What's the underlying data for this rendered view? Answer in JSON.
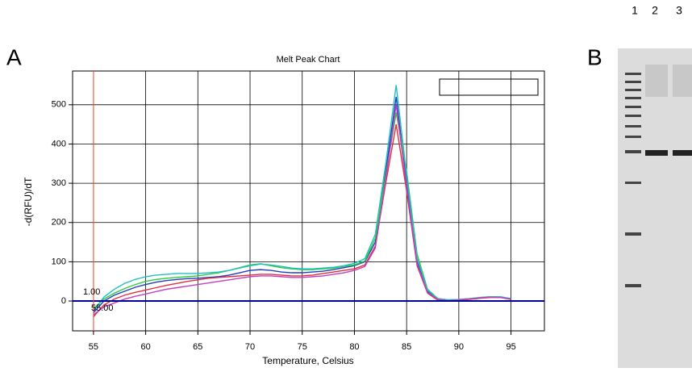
{
  "panel_a": "A",
  "panel_b": "B",
  "lanes": [
    "1",
    "2",
    "3"
  ],
  "chart_data": {
    "type": "line",
    "title": "Melt Peak Chart",
    "x_label": "Temperature, Celsius",
    "y_label": "-d(RFU)/dT",
    "annotations": [
      "1.00",
      "55.00"
    ],
    "x": [
      55,
      56,
      57,
      58,
      59,
      60,
      61,
      62,
      63,
      64,
      65,
      66,
      67,
      68,
      69,
      70,
      71,
      72,
      73,
      74,
      75,
      76,
      77,
      78,
      79,
      80,
      81,
      82,
      83,
      84,
      85,
      86,
      87,
      88,
      89,
      90,
      91,
      92,
      93,
      94,
      95
    ],
    "series": [
      {
        "color": "#1f3fbf",
        "values": [
          -30,
          0,
          15,
          25,
          35,
          42,
          48,
          52,
          55,
          57,
          58,
          60,
          62,
          66,
          72,
          78,
          80,
          78,
          74,
          72,
          72,
          74,
          76,
          80,
          85,
          90,
          100,
          150,
          330,
          520,
          300,
          100,
          25,
          5,
          2,
          3,
          5,
          8,
          10,
          10,
          5
        ]
      },
      {
        "color": "#2ecc40",
        "values": [
          -20,
          5,
          20,
          32,
          42,
          50,
          55,
          58,
          60,
          62,
          64,
          68,
          72,
          78,
          85,
          92,
          95,
          90,
          85,
          82,
          80,
          80,
          82,
          84,
          88,
          92,
          102,
          160,
          320,
          480,
          330,
          120,
          30,
          6,
          3,
          4,
          6,
          9,
          11,
          10,
          6
        ]
      },
      {
        "color": "#e0303f",
        "values": [
          -40,
          -10,
          5,
          15,
          22,
          28,
          34,
          40,
          45,
          50,
          54,
          58,
          60,
          62,
          64,
          66,
          68,
          68,
          66,
          64,
          64,
          66,
          70,
          74,
          78,
          82,
          92,
          140,
          300,
          450,
          280,
          90,
          20,
          2,
          0,
          2,
          4,
          7,
          9,
          9,
          4
        ]
      },
      {
        "color": "#20c0c0",
        "values": [
          -25,
          10,
          30,
          45,
          55,
          62,
          66,
          68,
          70,
          70,
          70,
          72,
          74,
          78,
          84,
          90,
          94,
          92,
          88,
          84,
          82,
          82,
          84,
          86,
          90,
          96,
          108,
          170,
          350,
          550,
          320,
          110,
          28,
          6,
          3,
          4,
          6,
          9,
          11,
          11,
          6
        ]
      },
      {
        "color": "#c040c0",
        "values": [
          -35,
          -15,
          -5,
          5,
          12,
          18,
          24,
          30,
          34,
          38,
          42,
          46,
          50,
          54,
          58,
          62,
          64,
          64,
          62,
          60,
          60,
          62,
          64,
          68,
          72,
          78,
          88,
          135,
          310,
          500,
          290,
          95,
          22,
          4,
          1,
          3,
          5,
          8,
          10,
          9,
          5
        ]
      }
    ],
    "xlim": [
      53,
      98.2
    ],
    "ylim": [
      -76,
      586
    ],
    "xticks": [
      55,
      60,
      65,
      70,
      75,
      80,
      85,
      90,
      95
    ],
    "yticks": [
      0,
      100,
      200,
      300,
      400,
      500
    ],
    "grid": true,
    "threshold_x": 55,
    "threshold_color": "#ff5533",
    "baseline_color": "#000099"
  }
}
